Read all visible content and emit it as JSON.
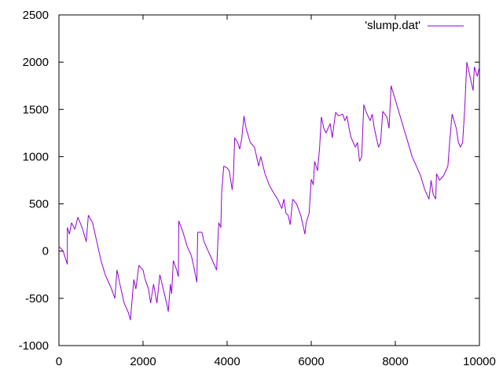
{
  "chart_data": {
    "type": "line",
    "title": "",
    "xlabel": "",
    "ylabel": "",
    "xlim": [
      0,
      10000
    ],
    "ylim": [
      -1000,
      2500
    ],
    "x_ticks": [
      0,
      2000,
      4000,
      6000,
      8000,
      10000
    ],
    "y_ticks": [
      -1000,
      -500,
      0,
      500,
      1000,
      1500,
      2000,
      2500
    ],
    "x_tick_labels": [
      "0",
      "2000",
      "4000",
      "6000",
      "8000",
      "10000"
    ],
    "y_tick_labels": [
      "-1000",
      "-500",
      "0",
      "500",
      "1000",
      "1500",
      "2000",
      "2500"
    ],
    "grid": false,
    "legend_position": "top-right",
    "series": [
      {
        "name": "'slump.dat'",
        "color": "#9400d3",
        "points": [
          [
            0,
            50
          ],
          [
            100,
            0
          ],
          [
            200,
            -140
          ],
          [
            200,
            250
          ],
          [
            250,
            180
          ],
          [
            300,
            300
          ],
          [
            380,
            230
          ],
          [
            450,
            360
          ],
          [
            550,
            250
          ],
          [
            650,
            100
          ],
          [
            700,
            380
          ],
          [
            800,
            300
          ],
          [
            900,
            100
          ],
          [
            1000,
            -100
          ],
          [
            1100,
            -250
          ],
          [
            1250,
            -400
          ],
          [
            1330,
            -500
          ],
          [
            1380,
            -200
          ],
          [
            1450,
            -350
          ],
          [
            1550,
            -550
          ],
          [
            1650,
            -650
          ],
          [
            1700,
            -730
          ],
          [
            1780,
            -300
          ],
          [
            1830,
            -400
          ],
          [
            1900,
            -150
          ],
          [
            2000,
            -200
          ],
          [
            2050,
            -300
          ],
          [
            2130,
            -400
          ],
          [
            2180,
            -550
          ],
          [
            2250,
            -350
          ],
          [
            2330,
            -550
          ],
          [
            2400,
            -250
          ],
          [
            2480,
            -400
          ],
          [
            2560,
            -550
          ],
          [
            2600,
            -640
          ],
          [
            2650,
            -350
          ],
          [
            2680,
            -450
          ],
          [
            2720,
            -100
          ],
          [
            2800,
            -200
          ],
          [
            2840,
            -270
          ],
          [
            2850,
            320
          ],
          [
            2950,
            200
          ],
          [
            3050,
            50
          ],
          [
            3150,
            -50
          ],
          [
            3200,
            -150
          ],
          [
            3280,
            -330
          ],
          [
            3300,
            200
          ],
          [
            3400,
            200
          ],
          [
            3450,
            100
          ],
          [
            3550,
            0
          ],
          [
            3650,
            -100
          ],
          [
            3750,
            -200
          ],
          [
            3800,
            300
          ],
          [
            3850,
            250
          ],
          [
            3870,
            620
          ],
          [
            3920,
            900
          ],
          [
            4000,
            880
          ],
          [
            4050,
            850
          ],
          [
            4120,
            650
          ],
          [
            4150,
            800
          ],
          [
            4180,
            1200
          ],
          [
            4250,
            1150
          ],
          [
            4300,
            1080
          ],
          [
            4350,
            1200
          ],
          [
            4400,
            1430
          ],
          [
            4450,
            1300
          ],
          [
            4550,
            1150
          ],
          [
            4650,
            1100
          ],
          [
            4750,
            900
          ],
          [
            4800,
            1000
          ],
          [
            4900,
            820
          ],
          [
            5000,
            700
          ],
          [
            5100,
            620
          ],
          [
            5200,
            550
          ],
          [
            5300,
            450
          ],
          [
            5350,
            550
          ],
          [
            5400,
            400
          ],
          [
            5450,
            380
          ],
          [
            5500,
            280
          ],
          [
            5560,
            550
          ],
          [
            5650,
            500
          ],
          [
            5750,
            380
          ],
          [
            5850,
            180
          ],
          [
            5880,
            300
          ],
          [
            5950,
            400
          ],
          [
            6000,
            760
          ],
          [
            6050,
            700
          ],
          [
            6080,
            950
          ],
          [
            6150,
            850
          ],
          [
            6200,
            1100
          ],
          [
            6240,
            1420
          ],
          [
            6300,
            1300
          ],
          [
            6350,
            1250
          ],
          [
            6450,
            1350
          ],
          [
            6500,
            1200
          ],
          [
            6580,
            1470
          ],
          [
            6650,
            1430
          ],
          [
            6750,
            1450
          ],
          [
            6800,
            1380
          ],
          [
            6850,
            1430
          ],
          [
            6900,
            1300
          ],
          [
            6950,
            1200
          ],
          [
            7050,
            1100
          ],
          [
            7100,
            1150
          ],
          [
            7150,
            950
          ],
          [
            7200,
            1000
          ],
          [
            7250,
            1550
          ],
          [
            7300,
            1480
          ],
          [
            7400,
            1380
          ],
          [
            7450,
            1450
          ],
          [
            7500,
            1300
          ],
          [
            7550,
            1200
          ],
          [
            7600,
            1100
          ],
          [
            7650,
            1150
          ],
          [
            7700,
            1480
          ],
          [
            7800,
            1420
          ],
          [
            7850,
            1300
          ],
          [
            7900,
            1750
          ],
          [
            8000,
            1600
          ],
          [
            8100,
            1450
          ],
          [
            8200,
            1300
          ],
          [
            8300,
            1150
          ],
          [
            8400,
            1000
          ],
          [
            8500,
            900
          ],
          [
            8600,
            800
          ],
          [
            8700,
            650
          ],
          [
            8800,
            550
          ],
          [
            8850,
            750
          ],
          [
            8900,
            600
          ],
          [
            8960,
            550
          ],
          [
            8980,
            820
          ],
          [
            9050,
            750
          ],
          [
            9150,
            800
          ],
          [
            9250,
            900
          ],
          [
            9300,
            1200
          ],
          [
            9350,
            1450
          ],
          [
            9450,
            1300
          ],
          [
            9500,
            1150
          ],
          [
            9550,
            1100
          ],
          [
            9600,
            1150
          ],
          [
            9650,
            1500
          ],
          [
            9700,
            2000
          ],
          [
            9800,
            1800
          ],
          [
            9850,
            1700
          ],
          [
            9880,
            1950
          ],
          [
            9950,
            1850
          ],
          [
            10000,
            1950
          ]
        ]
      }
    ]
  }
}
